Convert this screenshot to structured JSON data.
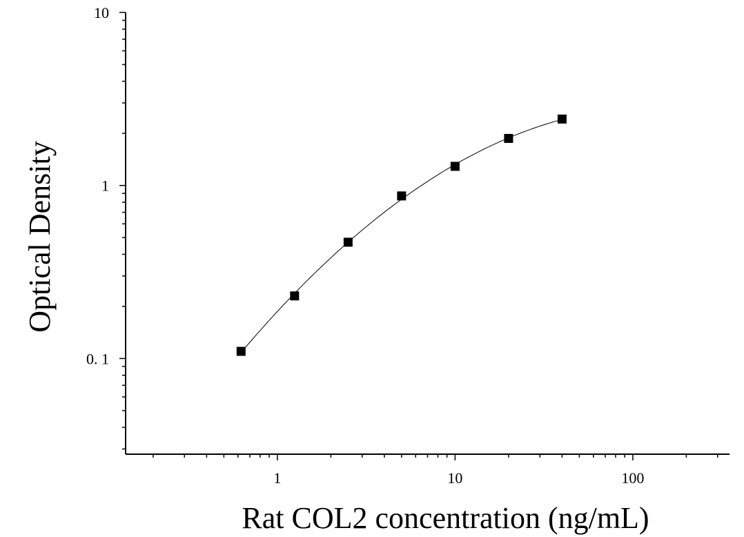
{
  "chart_data": {
    "type": "scatter",
    "title": "",
    "xlabel": "Rat COL2 concentration (ng/mL)",
    "ylabel": "Optical Density",
    "x_scale": "log",
    "y_scale": "log",
    "xlim": [
      0.14,
      350
    ],
    "ylim": [
      0.028,
      10
    ],
    "x_ticks": [
      {
        "value": 1,
        "label": "1"
      },
      {
        "value": 10,
        "label": "10"
      },
      {
        "value": 100,
        "label": "100"
      }
    ],
    "y_ticks": [
      {
        "value": 0.1,
        "label": "0. 1"
      },
      {
        "value": 1,
        "label": "1"
      },
      {
        "value": 10,
        "label": "10"
      }
    ],
    "series": [
      {
        "marker": "square",
        "color": "#000000",
        "x": [
          0.625,
          1.25,
          2.5,
          5,
          10,
          20,
          40
        ],
        "y": [
          0.11,
          0.23,
          0.47,
          0.87,
          1.29,
          1.87,
          2.42
        ]
      }
    ],
    "fit_curve": {
      "type": "smooth",
      "color": "#000000"
    },
    "grid": false,
    "legend": false
  }
}
